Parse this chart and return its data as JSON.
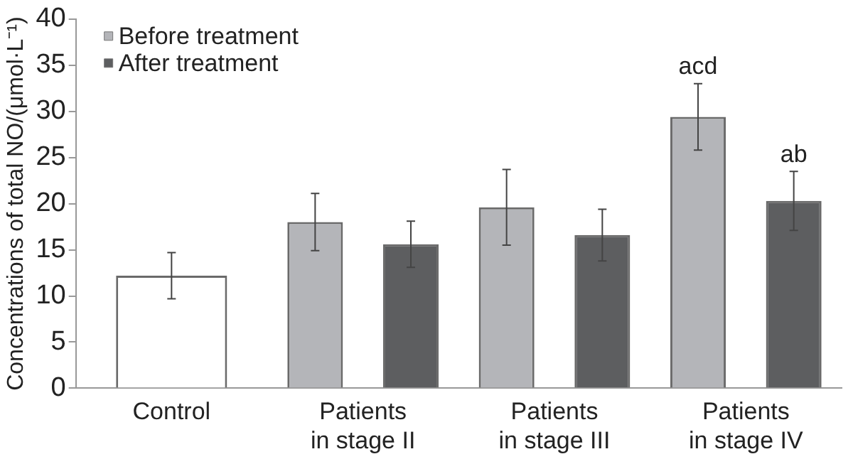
{
  "chart_data": {
    "type": "bar",
    "ylabel": "Concentrations of total NO/(μmol·L⁻¹)",
    "categories": [
      "Control",
      "Patients\nin stage II",
      "Patients\nin stage III",
      "Patients\nin stage IV"
    ],
    "series": [
      {
        "color": "#ffffff",
        "values": [
          12.2,
          null,
          null,
          null
        ],
        "errors": [
          2.5,
          null,
          null,
          null
        ]
      },
      {
        "name": "Before treatment",
        "color": "#b4b5b9",
        "values": [
          null,
          18.0,
          19.6,
          29.4
        ],
        "errors": [
          null,
          3.1,
          4.1,
          3.6
        ]
      },
      {
        "name": "After treatment",
        "color": "#5d5e60",
        "values": [
          null,
          15.6,
          16.6,
          20.3
        ],
        "errors": [
          null,
          2.5,
          2.8,
          3.2
        ]
      }
    ],
    "ylim": [
      0,
      40
    ],
    "yticks": [
      0,
      5,
      10,
      15,
      20,
      25,
      30,
      35,
      40
    ],
    "grid": false,
    "legend": "top left",
    "annotations": [
      "acd",
      "ab"
    ]
  }
}
